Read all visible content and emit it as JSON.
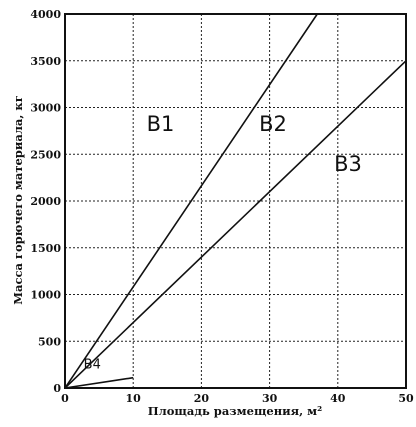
{
  "chart_data": {
    "type": "line",
    "xlabel": "Площадь размещения, м²",
    "ylabel": "Масса горючего материала, кг",
    "xlim": [
      0,
      50
    ],
    "ylim": [
      0,
      4000
    ],
    "x_ticks": [
      "0",
      "10",
      "20",
      "30",
      "40",
      "50"
    ],
    "y_ticks": [
      "0",
      "500",
      "1000",
      "1500",
      "2000",
      "2500",
      "3000",
      "3500",
      "4000"
    ],
    "grid": true,
    "series": [
      {
        "name": "",
        "x": [
          0,
          37
        ],
        "y": [
          0,
          4000
        ]
      },
      {
        "name": "",
        "x": [
          0,
          50
        ],
        "y": [
          0,
          3500
        ]
      },
      {
        "name": "",
        "x": [
          0,
          10
        ],
        "y": [
          0,
          110
        ]
      }
    ],
    "region_labels": [
      {
        "text": "В1",
        "x": 14,
        "y": 2750
      },
      {
        "text": "В2",
        "x": 30.5,
        "y": 2750
      },
      {
        "text": "В3",
        "x": 41.5,
        "y": 2320
      },
      {
        "text": "В4",
        "x": 4,
        "y": 210
      }
    ]
  }
}
